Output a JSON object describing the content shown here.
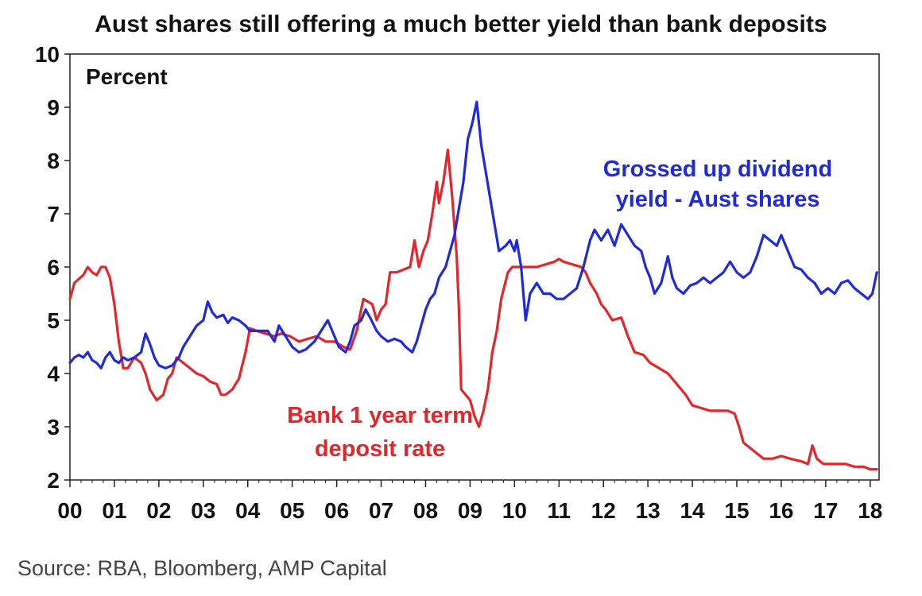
{
  "chart_data": {
    "type": "line",
    "title": "Aust shares still offering a much better yield  than bank deposits",
    "unit_label": "Percent",
    "source": "Source: RBA, Bloomberg, AMP Capital",
    "xlim": [
      0,
      18.2
    ],
    "ylim": [
      2,
      10
    ],
    "x_ticks": [
      0,
      1,
      2,
      3,
      4,
      5,
      6,
      7,
      8,
      9,
      10,
      11,
      12,
      13,
      14,
      15,
      16,
      17,
      18
    ],
    "x_tick_labels": [
      "00",
      "01",
      "02",
      "03",
      "04",
      "05",
      "06",
      "07",
      "08",
      "09",
      "10",
      "11",
      "12",
      "13",
      "14",
      "15",
      "16",
      "17",
      "18"
    ],
    "y_ticks": [
      2,
      3,
      4,
      5,
      6,
      7,
      8,
      9,
      10
    ],
    "y_tick_labels": [
      "2",
      "3",
      "4",
      "5",
      "6",
      "7",
      "8",
      "9",
      "10"
    ],
    "grid": false,
    "series": [
      {
        "name": "Grossed up dividend yield - Aust shares",
        "label_lines": [
          "Grossed up dividend",
          "yield - Aust shares"
        ],
        "color": "#1f2bd8",
        "points": [
          [
            0.0,
            4.2
          ],
          [
            0.1,
            4.3
          ],
          [
            0.2,
            4.35
          ],
          [
            0.3,
            4.3
          ],
          [
            0.4,
            4.4
          ],
          [
            0.5,
            4.25
          ],
          [
            0.6,
            4.2
          ],
          [
            0.7,
            4.1
          ],
          [
            0.8,
            4.3
          ],
          [
            0.9,
            4.4
          ],
          [
            1.0,
            4.25
          ],
          [
            1.1,
            4.2
          ],
          [
            1.2,
            4.3
          ],
          [
            1.3,
            4.25
          ],
          [
            1.45,
            4.3
          ],
          [
            1.6,
            4.4
          ],
          [
            1.7,
            4.75
          ],
          [
            1.8,
            4.55
          ],
          [
            1.9,
            4.3
          ],
          [
            2.0,
            4.15
          ],
          [
            2.15,
            4.1
          ],
          [
            2.3,
            4.15
          ],
          [
            2.45,
            4.3
          ],
          [
            2.55,
            4.5
          ],
          [
            2.7,
            4.7
          ],
          [
            2.85,
            4.9
          ],
          [
            3.0,
            5.0
          ],
          [
            3.1,
            5.35
          ],
          [
            3.2,
            5.15
          ],
          [
            3.3,
            5.05
          ],
          [
            3.45,
            5.1
          ],
          [
            3.55,
            4.95
          ],
          [
            3.65,
            5.05
          ],
          [
            3.8,
            5.0
          ],
          [
            3.95,
            4.9
          ],
          [
            4.05,
            4.8
          ],
          [
            4.25,
            4.8
          ],
          [
            4.45,
            4.8
          ],
          [
            4.6,
            4.6
          ],
          [
            4.7,
            4.9
          ],
          [
            4.85,
            4.7
          ],
          [
            5.0,
            4.5
          ],
          [
            5.15,
            4.4
          ],
          [
            5.3,
            4.45
          ],
          [
            5.5,
            4.6
          ],
          [
            5.65,
            4.8
          ],
          [
            5.8,
            5.0
          ],
          [
            5.95,
            4.7
          ],
          [
            6.05,
            4.5
          ],
          [
            6.2,
            4.4
          ],
          [
            6.3,
            4.6
          ],
          [
            6.4,
            4.9
          ],
          [
            6.55,
            5.0
          ],
          [
            6.65,
            5.2
          ],
          [
            6.75,
            5.05
          ],
          [
            6.9,
            4.8
          ],
          [
            7.0,
            4.7
          ],
          [
            7.15,
            4.6
          ],
          [
            7.3,
            4.65
          ],
          [
            7.45,
            4.6
          ],
          [
            7.55,
            4.5
          ],
          [
            7.7,
            4.4
          ],
          [
            7.8,
            4.6
          ],
          [
            7.9,
            4.9
          ],
          [
            8.0,
            5.2
          ],
          [
            8.1,
            5.4
          ],
          [
            8.2,
            5.5
          ],
          [
            8.3,
            5.8
          ],
          [
            8.45,
            6.0
          ],
          [
            8.55,
            6.3
          ],
          [
            8.65,
            6.6
          ],
          [
            8.75,
            7.1
          ],
          [
            8.85,
            7.6
          ],
          [
            8.95,
            8.4
          ],
          [
            9.05,
            8.7
          ],
          [
            9.15,
            9.1
          ],
          [
            9.25,
            8.3
          ],
          [
            9.35,
            7.8
          ],
          [
            9.45,
            7.3
          ],
          [
            9.55,
            6.8
          ],
          [
            9.65,
            6.3
          ],
          [
            9.8,
            6.4
          ],
          [
            9.9,
            6.5
          ],
          [
            10.0,
            6.3
          ],
          [
            10.05,
            6.5
          ],
          [
            10.15,
            6.0
          ],
          [
            10.25,
            5.0
          ],
          [
            10.35,
            5.5
          ],
          [
            10.5,
            5.7
          ],
          [
            10.65,
            5.5
          ],
          [
            10.8,
            5.5
          ],
          [
            10.95,
            5.4
          ],
          [
            11.1,
            5.4
          ],
          [
            11.25,
            5.5
          ],
          [
            11.4,
            5.6
          ],
          [
            11.55,
            6.0
          ],
          [
            11.7,
            6.5
          ],
          [
            11.8,
            6.7
          ],
          [
            11.95,
            6.5
          ],
          [
            12.1,
            6.7
          ],
          [
            12.25,
            6.4
          ],
          [
            12.4,
            6.8
          ],
          [
            12.55,
            6.6
          ],
          [
            12.7,
            6.4
          ],
          [
            12.85,
            6.3
          ],
          [
            12.95,
            6.0
          ],
          [
            13.05,
            5.8
          ],
          [
            13.15,
            5.5
          ],
          [
            13.3,
            5.7
          ],
          [
            13.45,
            6.2
          ],
          [
            13.55,
            5.8
          ],
          [
            13.65,
            5.6
          ],
          [
            13.8,
            5.5
          ],
          [
            13.95,
            5.65
          ],
          [
            14.1,
            5.7
          ],
          [
            14.25,
            5.8
          ],
          [
            14.4,
            5.7
          ],
          [
            14.55,
            5.8
          ],
          [
            14.7,
            5.9
          ],
          [
            14.85,
            6.1
          ],
          [
            15.0,
            5.9
          ],
          [
            15.15,
            5.8
          ],
          [
            15.3,
            5.9
          ],
          [
            15.45,
            6.2
          ],
          [
            15.6,
            6.6
          ],
          [
            15.75,
            6.5
          ],
          [
            15.9,
            6.4
          ],
          [
            16.0,
            6.6
          ],
          [
            16.15,
            6.3
          ],
          [
            16.3,
            6.0
          ],
          [
            16.45,
            5.95
          ],
          [
            16.6,
            5.8
          ],
          [
            16.75,
            5.7
          ],
          [
            16.9,
            5.5
          ],
          [
            17.05,
            5.6
          ],
          [
            17.2,
            5.5
          ],
          [
            17.35,
            5.7
          ],
          [
            17.5,
            5.75
          ],
          [
            17.65,
            5.6
          ],
          [
            17.8,
            5.5
          ],
          [
            17.95,
            5.4
          ],
          [
            18.05,
            5.5
          ],
          [
            18.15,
            5.9
          ]
        ]
      },
      {
        "name": "Bank 1 year term deposit rate",
        "label_lines": [
          "Bank 1 year term",
          "deposit rate"
        ],
        "color": "#e3262a",
        "points": [
          [
            0.0,
            5.4
          ],
          [
            0.1,
            5.7
          ],
          [
            0.3,
            5.85
          ],
          [
            0.4,
            6.0
          ],
          [
            0.5,
            5.9
          ],
          [
            0.6,
            5.85
          ],
          [
            0.7,
            6.0
          ],
          [
            0.8,
            6.0
          ],
          [
            0.9,
            5.8
          ],
          [
            1.0,
            5.3
          ],
          [
            1.1,
            4.6
          ],
          [
            1.2,
            4.1
          ],
          [
            1.3,
            4.1
          ],
          [
            1.45,
            4.3
          ],
          [
            1.6,
            4.2
          ],
          [
            1.7,
            4.0
          ],
          [
            1.8,
            3.7
          ],
          [
            1.95,
            3.5
          ],
          [
            2.1,
            3.6
          ],
          [
            2.2,
            3.9
          ],
          [
            2.3,
            4.0
          ],
          [
            2.4,
            4.3
          ],
          [
            2.55,
            4.2
          ],
          [
            2.7,
            4.1
          ],
          [
            2.85,
            4.0
          ],
          [
            3.0,
            3.95
          ],
          [
            3.15,
            3.85
          ],
          [
            3.3,
            3.8
          ],
          [
            3.4,
            3.6
          ],
          [
            3.5,
            3.6
          ],
          [
            3.65,
            3.7
          ],
          [
            3.8,
            3.9
          ],
          [
            3.95,
            4.4
          ],
          [
            4.05,
            4.85
          ],
          [
            4.2,
            4.8
          ],
          [
            4.4,
            4.75
          ],
          [
            4.6,
            4.7
          ],
          [
            4.75,
            4.75
          ],
          [
            4.95,
            4.7
          ],
          [
            5.15,
            4.6
          ],
          [
            5.35,
            4.65
          ],
          [
            5.55,
            4.7
          ],
          [
            5.75,
            4.6
          ],
          [
            5.95,
            4.6
          ],
          [
            6.15,
            4.5
          ],
          [
            6.3,
            4.45
          ],
          [
            6.45,
            4.8
          ],
          [
            6.6,
            5.4
          ],
          [
            6.8,
            5.3
          ],
          [
            6.9,
            5.0
          ],
          [
            7.0,
            5.2
          ],
          [
            7.1,
            5.3
          ],
          [
            7.2,
            5.9
          ],
          [
            7.35,
            5.9
          ],
          [
            7.5,
            5.95
          ],
          [
            7.65,
            6.0
          ],
          [
            7.75,
            6.5
          ],
          [
            7.85,
            6.0
          ],
          [
            7.95,
            6.3
          ],
          [
            8.05,
            6.5
          ],
          [
            8.15,
            7.0
          ],
          [
            8.25,
            7.6
          ],
          [
            8.3,
            7.2
          ],
          [
            8.4,
            7.6
          ],
          [
            8.5,
            8.2
          ],
          [
            8.6,
            7.3
          ],
          [
            8.7,
            6.2
          ],
          [
            8.75,
            5.2
          ],
          [
            8.8,
            3.7
          ],
          [
            8.9,
            3.6
          ],
          [
            9.0,
            3.5
          ],
          [
            9.1,
            3.2
          ],
          [
            9.2,
            3.0
          ],
          [
            9.3,
            3.3
          ],
          [
            9.4,
            3.7
          ],
          [
            9.5,
            4.4
          ],
          [
            9.6,
            4.8
          ],
          [
            9.7,
            5.4
          ],
          [
            9.85,
            5.9
          ],
          [
            9.95,
            6.0
          ],
          [
            10.1,
            6.0
          ],
          [
            10.3,
            6.0
          ],
          [
            10.5,
            6.0
          ],
          [
            10.7,
            6.05
          ],
          [
            10.9,
            6.1
          ],
          [
            11.0,
            6.15
          ],
          [
            11.1,
            6.1
          ],
          [
            11.3,
            6.05
          ],
          [
            11.5,
            6.0
          ],
          [
            11.6,
            5.9
          ],
          [
            11.7,
            5.7
          ],
          [
            11.85,
            5.5
          ],
          [
            11.95,
            5.3
          ],
          [
            12.05,
            5.2
          ],
          [
            12.2,
            5.0
          ],
          [
            12.4,
            5.05
          ],
          [
            12.55,
            4.7
          ],
          [
            12.7,
            4.4
          ],
          [
            12.9,
            4.35
          ],
          [
            13.05,
            4.2
          ],
          [
            13.25,
            4.1
          ],
          [
            13.45,
            4.0
          ],
          [
            13.65,
            3.8
          ],
          [
            13.85,
            3.6
          ],
          [
            14.0,
            3.4
          ],
          [
            14.2,
            3.35
          ],
          [
            14.4,
            3.3
          ],
          [
            14.6,
            3.3
          ],
          [
            14.8,
            3.3
          ],
          [
            14.95,
            3.25
          ],
          [
            15.05,
            3.0
          ],
          [
            15.15,
            2.7
          ],
          [
            15.3,
            2.6
          ],
          [
            15.45,
            2.5
          ],
          [
            15.6,
            2.4
          ],
          [
            15.8,
            2.4
          ],
          [
            16.0,
            2.45
          ],
          [
            16.2,
            2.4
          ],
          [
            16.45,
            2.35
          ],
          [
            16.6,
            2.3
          ],
          [
            16.7,
            2.65
          ],
          [
            16.8,
            2.4
          ],
          [
            16.95,
            2.3
          ],
          [
            17.2,
            2.3
          ],
          [
            17.45,
            2.3
          ],
          [
            17.65,
            2.25
          ],
          [
            17.85,
            2.25
          ],
          [
            18.0,
            2.2
          ],
          [
            18.15,
            2.2
          ]
        ]
      }
    ]
  }
}
